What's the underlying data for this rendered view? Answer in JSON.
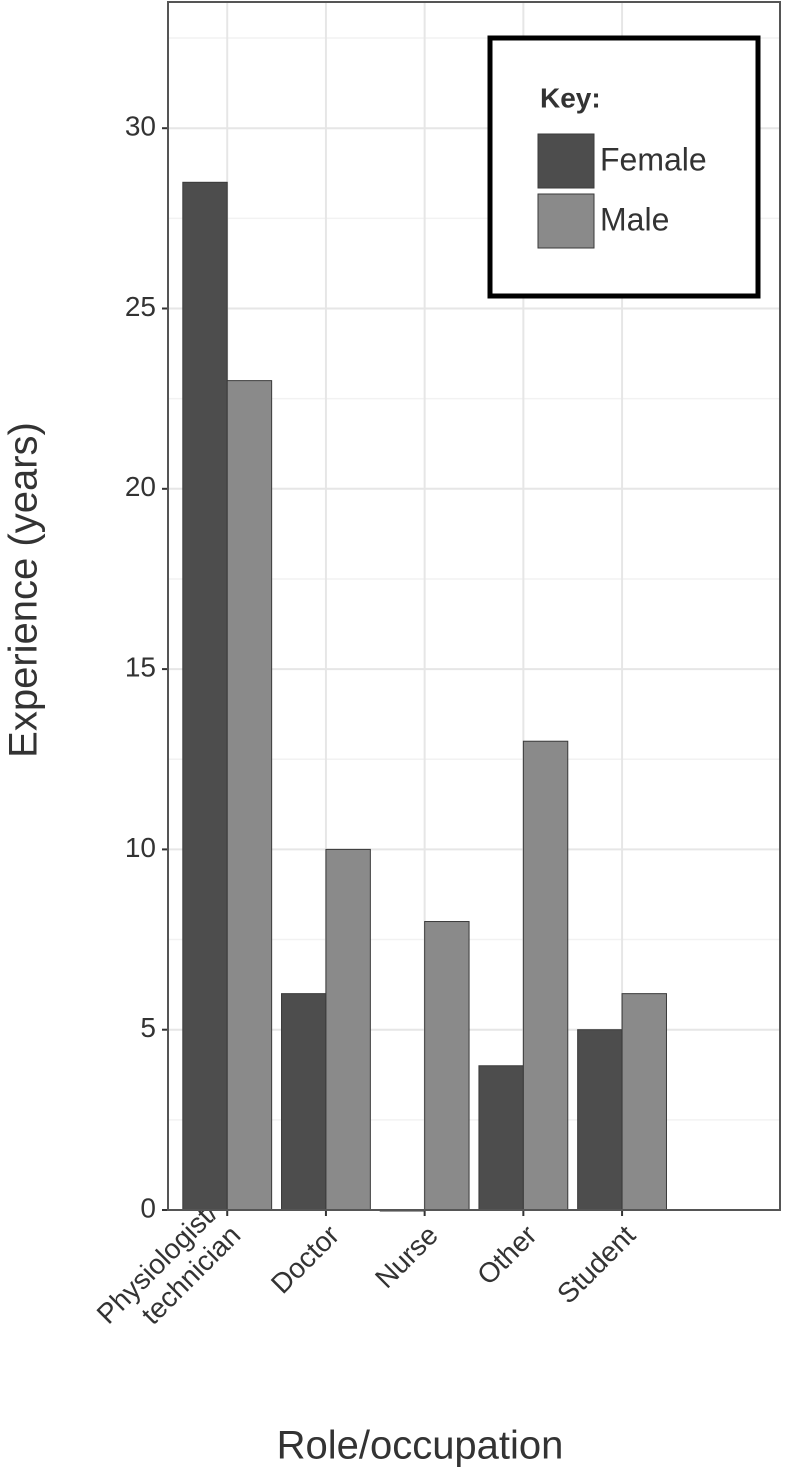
{
  "chart_data": {
    "type": "bar",
    "x_label": "Role/occupation",
    "y_label": "Experience  (years)",
    "categories": [
      "Physiologist/\ntechnician",
      "Doctor",
      "Nurse",
      "Other",
      "Student"
    ],
    "series": [
      {
        "name": "Female",
        "color": "#4d4d4d",
        "values": [
          28.5,
          6,
          0,
          4,
          5
        ]
      },
      {
        "name": "Male",
        "color": "#8a8a8a",
        "values": [
          23,
          10,
          8,
          13,
          6
        ]
      }
    ],
    "legend_title": "Key:",
    "legend_position": "top-right",
    "ylim": [
      0,
      33.5
    ],
    "yticks": [
      0,
      5,
      10,
      15,
      20,
      25,
      30
    ],
    "grid": true
  }
}
